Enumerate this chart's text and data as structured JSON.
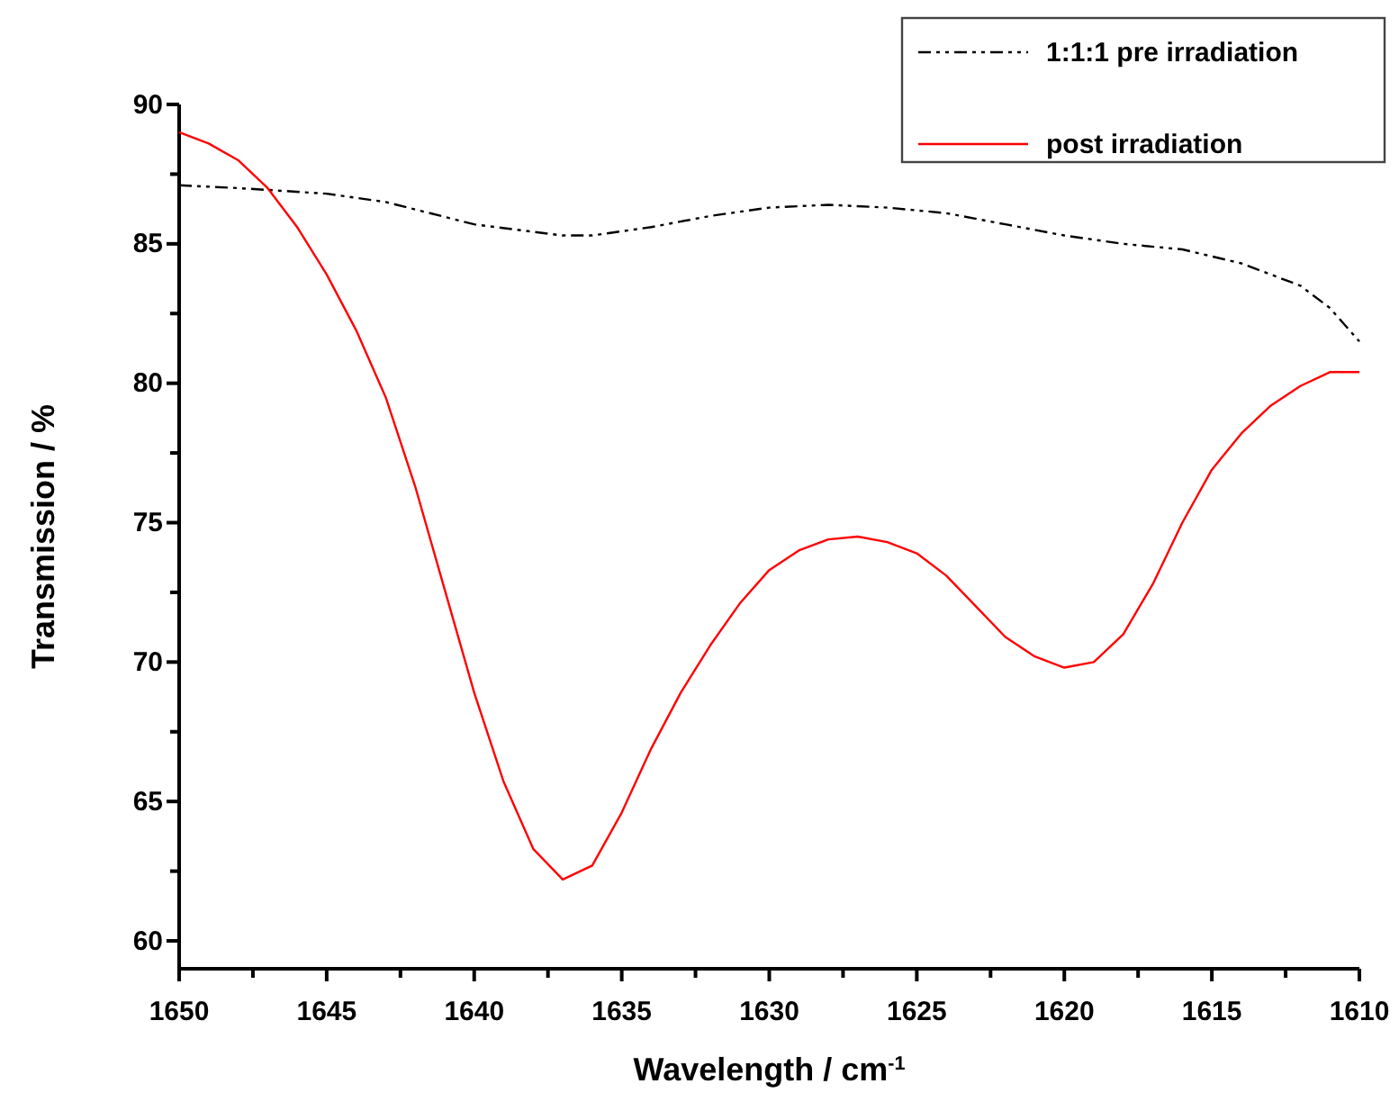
{
  "chart_data": {
    "type": "line",
    "xlabel": "Wavelength / cm$^{-1}$",
    "ylabel": "Transmission / %",
    "xlim": [
      1650,
      1610
    ],
    "ylim": [
      59,
      90
    ],
    "xticks": [
      1650,
      {
        "value": 1647.5,
        "label": null
      },
      1645,
      {
        "value": 1642.5,
        "label": null
      },
      1640,
      {
        "value": 1637.5,
        "label": null
      },
      1635,
      {
        "value": 1632.5,
        "label": null
      },
      1630,
      {
        "value": 1627.5,
        "label": null
      },
      1625,
      {
        "value": 1622.5,
        "label": null
      },
      1620,
      {
        "value": 1617.5,
        "label": null
      },
      1615,
      {
        "value": 1612.5,
        "label": null
      },
      1610
    ],
    "yticks": [
      60,
      {
        "value": 62.5,
        "label": null
      },
      65,
      {
        "value": 67.5,
        "label": null
      },
      70,
      {
        "value": 72.5,
        "label": null
      },
      75,
      {
        "value": 77.5,
        "label": null
      },
      80,
      {
        "value": 82.5,
        "label": null
      },
      85,
      {
        "value": 87.5,
        "label": null
      },
      90
    ],
    "legend": "top right",
    "grid": false,
    "series": [
      {
        "name": "1:1:1 pre irradiation",
        "color": "#000000",
        "line_style": "dashed",
        "x": [
          1650,
          1648,
          1645,
          1643,
          1640,
          1637,
          1636,
          1634,
          1632,
          1630,
          1628,
          1626,
          1624,
          1622,
          1620,
          1618,
          1616,
          1614,
          1612,
          1611,
          1610
        ],
        "values": [
          87.1,
          87.0,
          86.8,
          86.5,
          85.7,
          85.3,
          85.3,
          85.6,
          86.0,
          86.3,
          86.4,
          86.3,
          86.1,
          85.7,
          85.3,
          85.0,
          84.8,
          84.3,
          83.5,
          82.7,
          81.5
        ]
      },
      {
        "name": "post irradiation",
        "color": "#ff0000",
        "line_style": "solid",
        "x": [
          1650,
          1649,
          1648,
          1647,
          1646,
          1645,
          1644,
          1643,
          1642,
          1641,
          1640,
          1639,
          1638,
          1637,
          1636,
          1635,
          1634,
          1633,
          1632,
          1631,
          1630,
          1629,
          1628,
          1627,
          1626,
          1625,
          1624,
          1623,
          1622,
          1621,
          1620,
          1619,
          1618,
          1617,
          1616,
          1615,
          1614,
          1613,
          1612,
          1611,
          1610
        ],
        "values": [
          89.0,
          88.6,
          88.0,
          87.0,
          85.6,
          83.9,
          81.9,
          79.5,
          76.3,
          72.6,
          68.9,
          65.7,
          63.3,
          62.2,
          62.7,
          64.6,
          66.9,
          68.9,
          70.6,
          72.1,
          73.3,
          74.0,
          74.4,
          74.5,
          74.3,
          73.9,
          73.1,
          72.0,
          70.9,
          70.2,
          69.8,
          70.0,
          71.0,
          72.8,
          75.0,
          76.9,
          78.2,
          79.2,
          79.9,
          80.4,
          80.4
        ]
      }
    ]
  }
}
